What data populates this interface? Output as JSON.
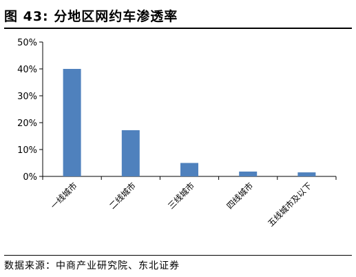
{
  "figure": {
    "title": "图  43:  分地区网约车渗透率",
    "source": "数据来源：中商产业研究院、东北证券"
  },
  "colors": {
    "bar": "#4f81bd",
    "axis": "#000000"
  },
  "chart_data": {
    "type": "bar",
    "categories": [
      "一线城市",
      "二线城市",
      "三线城市",
      "四线城市",
      "五线城市及以下"
    ],
    "values": [
      40,
      17.2,
      5,
      1.8,
      1.5
    ],
    "y_ticks": [
      "0%",
      "10%",
      "20%",
      "30%",
      "40%",
      "50%"
    ],
    "ylim": [
      0,
      50
    ],
    "grid": false,
    "legend": "none"
  }
}
